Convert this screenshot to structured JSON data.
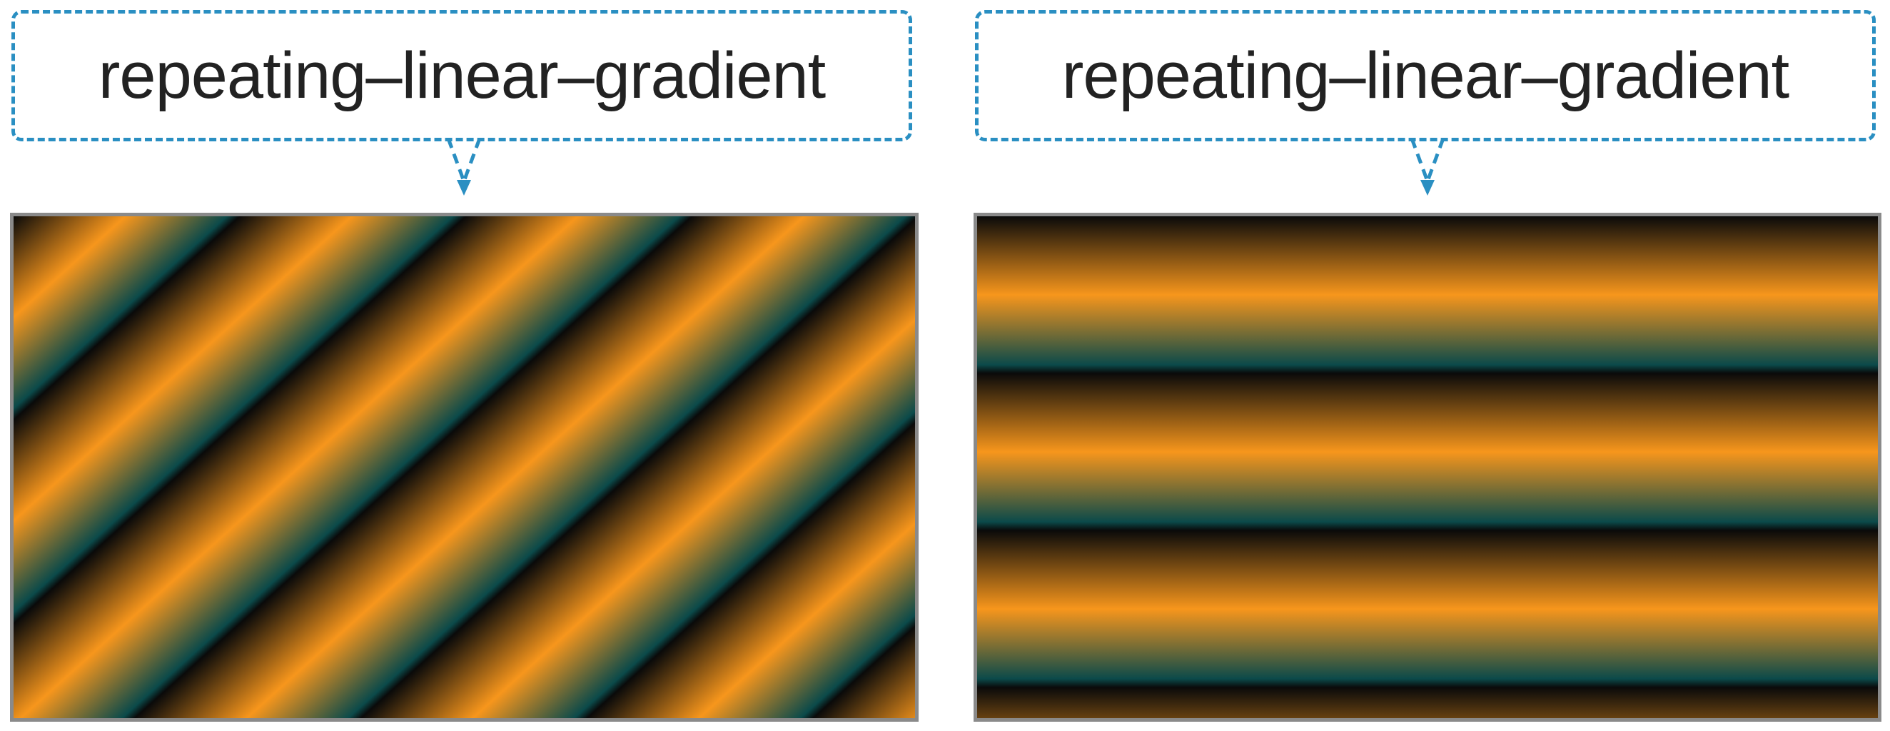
{
  "examples": [
    {
      "label": "repeating–linear–gradient",
      "colors": [
        "#f7961c",
        "#0b4a4a",
        "#0a0a0a"
      ],
      "pattern": "diagonal"
    },
    {
      "label": "repeating–linear–gradient",
      "colors": [
        "#f7961c",
        "#0b4a4a",
        "#0a0a0a"
      ],
      "pattern": "horizontal"
    }
  ],
  "accent_color": "#2a8fc2",
  "frame_color": "#8a8a8a"
}
